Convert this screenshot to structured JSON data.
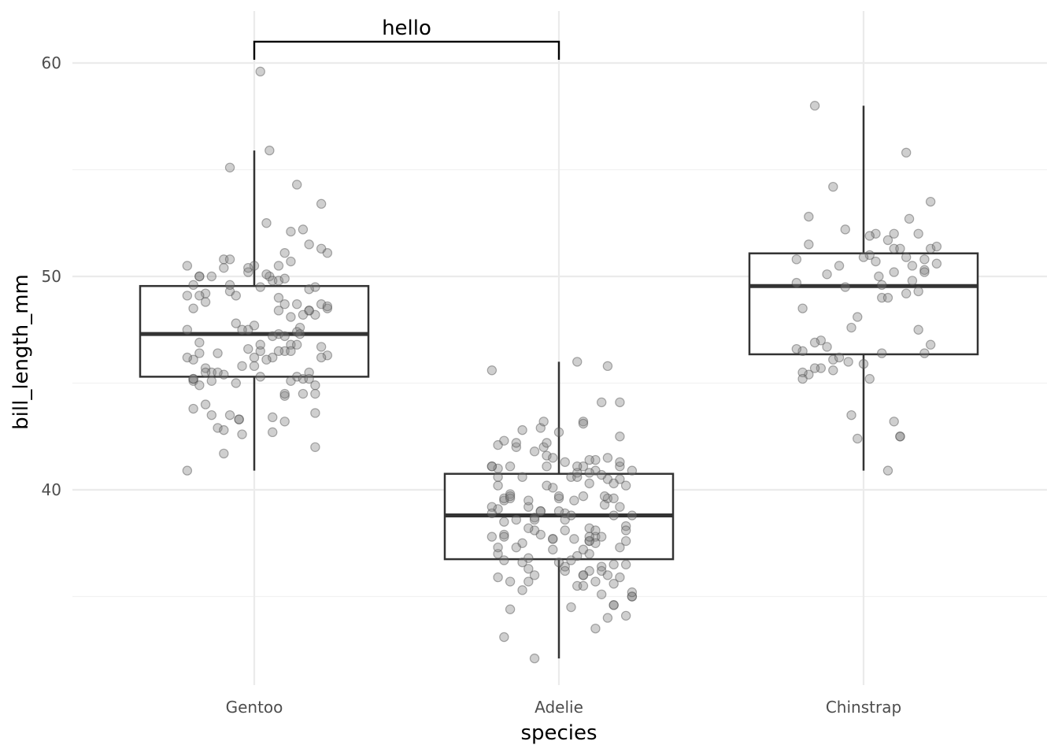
{
  "chart_data": {
    "type": "box",
    "xlabel": "species",
    "ylabel": "bill_length_mm",
    "categories": [
      "Gentoo",
      "Adelie",
      "Chinstrap"
    ],
    "ylim": [
      31.3,
      62.5
    ],
    "yticks": [
      40,
      50,
      60
    ],
    "grid": true,
    "legend": "none",
    "annotation": {
      "label": "hello",
      "from": "Gentoo",
      "to": "Adelie",
      "y": 61.0
    },
    "boxes": [
      {
        "category": "Gentoo",
        "min": 40.9,
        "q1": 45.3,
        "median": 47.3,
        "q3": 49.55,
        "max": 55.9
      },
      {
        "category": "Adelie",
        "min": 32.1,
        "q1": 36.75,
        "median": 38.8,
        "q3": 40.75,
        "max": 46.0
      },
      {
        "category": "Chinstrap",
        "min": 40.9,
        "q1": 46.35,
        "median": 49.55,
        "q3": 51.08,
        "max": 58.0
      }
    ],
    "points": [
      {
        "category": "Gentoo",
        "jitter": [
          -0.2,
          0.05,
          0.1,
          -0.18,
          0.15,
          0.02,
          -0.1,
          0.22,
          -0.05,
          0.12,
          -0.22,
          0.08,
          -0.14,
          0.18,
          0.0,
          -0.08,
          0.2,
          -0.16,
          0.06,
          0.14,
          -0.02,
          -0.2,
          0.1,
          0.24,
          -0.12,
          0.04,
          0.16,
          -0.06,
          0.2,
          -0.18,
          0.08,
          -0.1,
          0.12,
          0.02,
          -0.22,
          0.18,
          -0.04,
          0.1,
          -0.16,
          0.22,
          0.06,
          -0.08,
          0.14,
          -0.2,
          0.0,
          0.2,
          -0.12,
          0.08,
          -0.18,
          0.16,
          -0.02,
          0.24,
          -0.14,
          0.04,
          0.12,
          -0.06,
          -0.2,
          0.18,
          0.1,
          -0.1,
          0.02,
          0.22,
          -0.16,
          0.14,
          -0.04,
          0.06,
          -0.22,
          0.2,
          -0.08,
          0.12,
          0.0,
          -0.18,
          0.16,
          0.08,
          -0.12,
          0.24,
          -0.02,
          0.1,
          -0.2,
          0.18,
          -0.06,
          0.04,
          0.14,
          -0.14,
          0.2,
          -0.1,
          0.06,
          0.22,
          -0.22,
          0.12,
          -0.04,
          0.16,
          -0.16,
          0.02,
          0.1,
          -0.08,
          0.18,
          -0.18,
          0.08,
          0.24
        ],
        "values": [
          46.1,
          50.0,
          48.7,
          50.0,
          47.6,
          46.5,
          45.4,
          46.7,
          43.3,
          46.8,
          40.9,
          49.0,
          45.5,
          48.4,
          45.8,
          49.3,
          42.0,
          49.2,
          46.2,
          48.7,
          50.2,
          45.1,
          46.5,
          46.3,
          42.9,
          46.1,
          44.5,
          47.8,
          48.2,
          50.0,
          47.3,
          42.8,
          45.1,
          59.6,
          49.1,
          48.4,
          42.6,
          44.4,
          44.0,
          48.7,
          42.7,
          49.6,
          45.3,
          49.6,
          50.5,
          43.6,
          45.5,
          50.5,
          44.9,
          45.2,
          46.6,
          48.5,
          45.1,
          50.1,
          46.5,
          45.0,
          43.8,
          45.5,
          43.2,
          50.4,
          45.3,
          46.2,
          45.7,
          54.3,
          45.8,
          49.8,
          46.2,
          49.5,
          43.5,
          50.7,
          47.7,
          46.4,
          48.2,
          46.5,
          46.4,
          48.6,
          47.5,
          51.1,
          45.2,
          45.2,
          49.1,
          52.5,
          47.4,
          50.0,
          44.9,
          50.8,
          43.4,
          51.3,
          47.5,
          52.1,
          47.5,
          52.2,
          45.5,
          49.5,
          44.5,
          50.8,
          49.4,
          46.9,
          48.4,
          51.1,
          48.5,
          55.9,
          47.2,
          49.1,
          47.3,
          46.8,
          41.7,
          53.4,
          43.3,
          48.1,
          50.5,
          49.8,
          43.5,
          51.5,
          46.2,
          55.1,
          44.5,
          48.8,
          47.2,
          46.8,
          50.4,
          45.2,
          49.9
        ]
      },
      {
        "category": "Adelie",
        "jitter": [
          -0.2,
          0.05,
          0.1,
          -0.18,
          0.15,
          0.02,
          -0.1,
          0.22,
          -0.05,
          0.12,
          -0.22,
          0.08,
          -0.14,
          0.18,
          0.0,
          -0.08,
          0.2,
          -0.16,
          0.06,
          0.14,
          -0.02,
          -0.2,
          0.1,
          0.24,
          -0.12,
          0.04,
          0.16,
          -0.06,
          0.2,
          -0.18,
          0.08,
          -0.1,
          0.12,
          0.02,
          -0.22,
          0.18,
          -0.04,
          0.1,
          -0.16,
          0.22,
          0.06,
          -0.08,
          0.14,
          -0.2,
          0.0,
          0.2,
          -0.12,
          0.08,
          -0.18,
          0.16,
          -0.02,
          0.24,
          -0.14,
          0.04,
          0.12,
          -0.06,
          -0.2,
          0.18,
          0.1,
          -0.1,
          0.02,
          0.22,
          -0.16,
          0.14,
          -0.04,
          0.06,
          -0.22,
          0.2,
          -0.08,
          0.12,
          0.0,
          -0.18,
          0.16,
          0.08,
          -0.12,
          0.24,
          -0.02,
          0.1,
          -0.2,
          0.18,
          -0.06,
          0.04,
          0.14,
          -0.14,
          0.2,
          -0.1,
          0.06,
          0.22,
          -0.22,
          0.12,
          -0.04,
          0.16,
          -0.16,
          0.02,
          0.1,
          -0.08,
          0.18,
          -0.18,
          0.08,
          0.24
        ],
        "values": [
          39.1,
          39.5,
          40.3,
          36.7,
          39.3,
          38.9,
          39.2,
          34.1,
          42.0,
          37.8,
          37.8,
          41.1,
          38.6,
          34.6,
          36.6,
          38.7,
          42.5,
          34.4,
          46.0,
          37.8,
          37.7,
          35.9,
          38.2,
          38.8,
          35.3,
          40.6,
          40.5,
          37.9,
          40.5,
          39.5,
          37.2,
          39.5,
          40.9,
          36.4,
          39.2,
          38.8,
          42.2,
          37.6,
          39.8,
          36.5,
          40.8,
          36.0,
          44.1,
          37.0,
          39.6,
          41.1,
          37.5,
          36.0,
          42.3,
          39.6,
          40.1,
          35.0,
          42.0,
          34.5,
          41.4,
          39.0,
          40.6,
          36.5,
          37.6,
          35.7,
          41.3,
          37.6,
          41.1,
          36.4,
          41.6,
          35.5,
          41.1,
          35.9,
          41.8,
          33.5,
          39.7,
          39.6,
          45.8,
          35.5,
          42.8,
          40.9,
          37.2,
          36.2,
          42.1,
          34.6,
          42.9,
          36.7,
          35.1,
          37.3,
          41.3,
          36.3,
          36.9,
          38.3,
          38.9,
          35.7,
          41.1,
          34.0,
          39.6,
          36.2,
          40.8,
          38.1,
          40.3,
          33.1,
          43.2,
          35.0,
          41.0,
          37.7,
          37.8,
          37.9,
          39.7,
          38.6,
          38.2,
          38.1,
          43.2,
          38.1,
          45.6,
          39.7,
          42.2,
          39.6,
          42.7,
          38.6,
          37.3,
          35.7,
          41.1,
          36.2,
          37.7,
          40.2,
          41.4,
          35.2,
          40.6,
          38.8,
          41.5,
          39.0,
          44.1,
          38.5,
          43.1,
          36.8,
          37.5,
          38.1,
          41.1,
          35.6,
          40.2,
          37.0,
          39.7,
          40.2,
          40.6,
          32.1,
          40.7,
          37.3,
          39.0,
          39.2,
          36.6,
          36.0,
          37.8,
          36.0,
          41.5
        ]
      },
      {
        "category": "Chinstrap",
        "jitter": [
          -0.2,
          0.05,
          0.1,
          -0.18,
          0.15,
          0.02,
          -0.1,
          0.22,
          -0.05,
          0.12,
          -0.22,
          0.08,
          -0.14,
          0.18,
          0.0,
          -0.08,
          0.2,
          -0.16,
          0.06,
          0.14,
          -0.02,
          -0.2,
          0.1,
          0.24,
          -0.12,
          0.04,
          0.16,
          -0.06,
          0.2,
          -0.18,
          0.08,
          -0.1,
          0.12,
          0.02,
          -0.22,
          0.18,
          -0.04,
          0.1,
          -0.16,
          0.22,
          0.06,
          -0.08,
          0.14,
          -0.2,
          0.0,
          0.2,
          -0.12,
          0.08,
          -0.18,
          0.16,
          -0.02,
          0.24,
          -0.14,
          0.04,
          0.12,
          -0.06,
          -0.2,
          0.18,
          0.1,
          -0.1,
          0.02,
          0.22,
          -0.16,
          0.14,
          -0.04,
          0.06,
          -0.22,
          0.2
        ],
        "values": [
          46.5,
          50.0,
          51.3,
          45.4,
          52.7,
          45.2,
          46.1,
          51.3,
          46.0,
          51.3,
          46.6,
          51.7,
          47.0,
          52.0,
          45.9,
          50.5,
          50.3,
          58.0,
          46.4,
          49.2,
          42.4,
          48.5,
          43.2,
          50.6,
          46.7,
          52.0,
          50.5,
          49.5,
          46.4,
          52.8,
          40.9,
          54.2,
          42.5,
          51.0,
          49.7,
          47.5,
          47.6,
          52.0,
          46.9,
          53.5,
          49.0,
          46.2,
          50.9,
          45.5,
          50.9,
          50.8,
          50.1,
          49.0,
          51.5,
          49.8,
          48.1,
          51.4,
          45.7,
          50.7,
          42.5,
          52.2,
          45.2,
          49.3,
          50.2,
          45.6,
          51.9,
          46.8,
          45.7,
          55.8,
          43.5,
          49.6,
          50.8,
          50.2
        ]
      }
    ]
  }
}
